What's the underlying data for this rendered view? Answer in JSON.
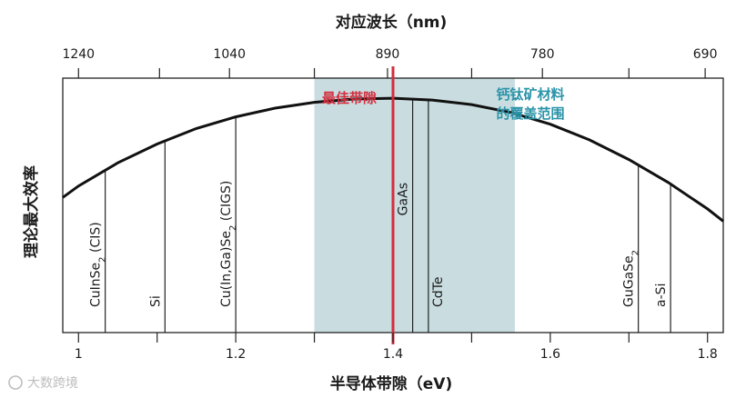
{
  "chart_data": {
    "type": "line",
    "xlabel": "半导体带隙（eV)",
    "ylabel": "理论最大效率",
    "top_axis_label": "对应波长（nm)",
    "xlim": [
      0.98,
      1.82
    ],
    "ylim": [
      0,
      1
    ],
    "x_ticks": [
      1,
      1.2,
      1.4,
      1.6,
      1.8
    ],
    "x_tick_labels": [
      "1",
      "1.2",
      "1.4",
      "1.6",
      "1.8"
    ],
    "x_minor_ticks": [
      1.1,
      1.3,
      1.5,
      1.7
    ],
    "top_ticks": [
      {
        "label": "1240",
        "x": 1.0
      },
      {
        "label": "1040",
        "x": 1.192
      },
      {
        "label": "890",
        "x": 1.393
      },
      {
        "label": "780",
        "x": 1.59
      },
      {
        "label": "690",
        "x": 1.797
      }
    ],
    "top_minor_ticks": [
      1.103,
      1.3,
      1.5,
      1.7
    ],
    "curve": {
      "x": [
        0.98,
        1.0,
        1.05,
        1.1,
        1.15,
        1.2,
        1.25,
        1.3,
        1.35,
        1.4,
        1.45,
        1.5,
        1.55,
        1.6,
        1.65,
        1.7,
        1.75,
        1.8,
        1.82
      ],
      "y": [
        0.531,
        0.576,
        0.667,
        0.741,
        0.802,
        0.848,
        0.882,
        0.905,
        0.918,
        0.921,
        0.914,
        0.896,
        0.865,
        0.819,
        0.757,
        0.68,
        0.59,
        0.486,
        0.438
      ]
    },
    "materials": [
      {
        "label": "CuInSe",
        "sub": "2",
        "after": " (CIS)",
        "x": 1.034,
        "label_side": "left"
      },
      {
        "label": "Si",
        "sub": "",
        "after": "",
        "x": 1.11,
        "label_side": "left"
      },
      {
        "label": "Cu(In,Ga)Se",
        "sub": "2",
        "after": " (CIGS)",
        "x": 1.2,
        "label_side": "left"
      },
      {
        "label": "GaAs",
        "sub": "",
        "after": "",
        "x": 1.425,
        "label_side": "left",
        "label_top": true
      },
      {
        "label": "CdTe",
        "sub": "",
        "after": "",
        "x": 1.445,
        "label_side": "right"
      },
      {
        "label": "GuGaSe",
        "sub": "2",
        "after": "",
        "x": 1.712,
        "label_side": "left"
      },
      {
        "label": "a-Si",
        "sub": "",
        "after": "",
        "x": 1.753,
        "label_side": "left"
      }
    ],
    "optimal_bandgap": {
      "x": 1.4,
      "label": "最佳带隙",
      "color": "#d32f3f"
    },
    "perovskite_range": {
      "x": [
        1.3,
        1.555
      ],
      "label": [
        "钙钛矿材料",
        "的覆盖范围"
      ],
      "color": "#c9dde1",
      "text_color": "#2a93a8"
    }
  },
  "watermark": "大数跨境"
}
